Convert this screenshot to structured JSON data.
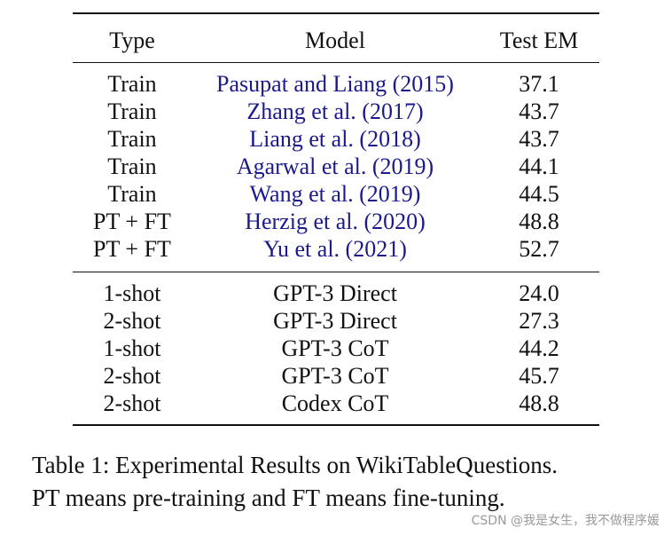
{
  "table": {
    "headers": {
      "type": "Type",
      "model": "Model",
      "metric": "Test EM"
    },
    "finetuned_rows": [
      {
        "type": "Train",
        "model": "Pasupat and Liang (2015)",
        "em": "37.1"
      },
      {
        "type": "Train",
        "model": "Zhang et al. (2017)",
        "em": "43.7"
      },
      {
        "type": "Train",
        "model": "Liang et al. (2018)",
        "em": "43.7"
      },
      {
        "type": "Train",
        "model": "Agarwal et al. (2019)",
        "em": "44.1"
      },
      {
        "type": "Train",
        "model": "Wang et al. (2019)",
        "em": "44.5"
      },
      {
        "type": "PT + FT",
        "model": "Herzig et al. (2020)",
        "em": "48.8"
      },
      {
        "type": "PT + FT",
        "model": "Yu et al. (2021)",
        "em": "52.7"
      }
    ],
    "fewshot_rows": [
      {
        "type": "1-shot",
        "model": "GPT-3 Direct",
        "em": "24.0"
      },
      {
        "type": "2-shot",
        "model": "GPT-3 Direct",
        "em": "27.3"
      },
      {
        "type": "1-shot",
        "model": "GPT-3 CoT",
        "em": "44.2"
      },
      {
        "type": "2-shot",
        "model": "GPT-3 CoT",
        "em": "45.7"
      },
      {
        "type": "2-shot",
        "model": "Codex CoT",
        "em": "48.8"
      }
    ],
    "citation_color": "#1a1a8c"
  },
  "caption": {
    "line1": "Table 1: Experimental Results on WikiTableQuestions.",
    "line2": "PT means pre-training and FT means fine-tuning."
  },
  "watermark": "CSDN @我是女生，我不做程序媛"
}
